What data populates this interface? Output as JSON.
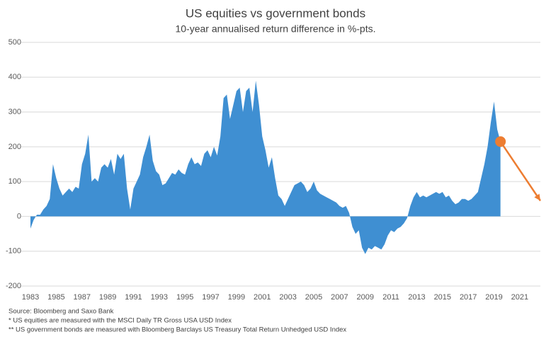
{
  "chart_data": {
    "type": "area",
    "title": "US equities vs government bonds",
    "subtitle": "10-year annualised return difference in %-pts.",
    "color": "#3f8fd2",
    "x": [
      1983,
      1983.25,
      1983.5,
      1983.75,
      1984,
      1984.25,
      1984.5,
      1984.75,
      1985,
      1985.25,
      1985.5,
      1985.75,
      1986,
      1986.25,
      1986.5,
      1986.75,
      1987,
      1987.25,
      1987.5,
      1987.75,
      1988,
      1988.25,
      1988.5,
      1988.75,
      1989,
      1989.25,
      1989.5,
      1989.75,
      1990,
      1990.25,
      1990.5,
      1990.75,
      1991,
      1991.25,
      1991.5,
      1991.75,
      1992,
      1992.25,
      1992.5,
      1992.75,
      1993,
      1993.25,
      1993.5,
      1993.75,
      1994,
      1994.25,
      1994.5,
      1994.75,
      1995,
      1995.25,
      1995.5,
      1995.75,
      1996,
      1996.25,
      1996.5,
      1996.75,
      1997,
      1997.25,
      1997.5,
      1997.75,
      1998,
      1998.25,
      1998.5,
      1998.75,
      1999,
      1999.25,
      1999.5,
      1999.75,
      2000,
      2000.25,
      2000.5,
      2000.75,
      2001,
      2001.25,
      2001.5,
      2001.75,
      2002,
      2002.25,
      2002.5,
      2002.75,
      2003,
      2003.25,
      2003.5,
      2003.75,
      2004,
      2004.25,
      2004.5,
      2004.75,
      2005,
      2005.25,
      2005.5,
      2005.75,
      2006,
      2006.25,
      2006.5,
      2006.75,
      2007,
      2007.25,
      2007.5,
      2007.75,
      2008,
      2008.25,
      2008.5,
      2008.75,
      2009,
      2009.25,
      2009.5,
      2009.75,
      2010,
      2010.25,
      2010.5,
      2010.75,
      2011,
      2011.25,
      2011.5,
      2011.75,
      2012,
      2012.25,
      2012.5,
      2012.75,
      2013,
      2013.25,
      2013.5,
      2013.75,
      2014,
      2014.25,
      2014.5,
      2014.75,
      2015,
      2015.25,
      2015.5,
      2015.75,
      2016,
      2016.25,
      2016.5,
      2016.75,
      2017,
      2017.25,
      2017.5,
      2017.75,
      2018,
      2018.25,
      2018.5,
      2018.75,
      2019,
      2019.25,
      2019.5
    ],
    "values": [
      -35,
      -10,
      5,
      5,
      20,
      30,
      50,
      150,
      110,
      80,
      60,
      70,
      80,
      70,
      85,
      80,
      150,
      180,
      235,
      100,
      110,
      100,
      140,
      150,
      140,
      165,
      120,
      180,
      165,
      180,
      80,
      20,
      80,
      100,
      120,
      170,
      200,
      235,
      160,
      130,
      120,
      90,
      95,
      110,
      125,
      120,
      135,
      125,
      120,
      150,
      170,
      150,
      155,
      145,
      180,
      190,
      170,
      200,
      175,
      230,
      340,
      350,
      280,
      320,
      360,
      370,
      300,
      360,
      370,
      300,
      390,
      320,
      230,
      190,
      140,
      170,
      110,
      60,
      50,
      30,
      50,
      70,
      90,
      95,
      100,
      90,
      70,
      80,
      100,
      75,
      65,
      60,
      55,
      50,
      45,
      40,
      30,
      25,
      30,
      10,
      -30,
      -50,
      -40,
      -90,
      -108,
      -90,
      -95,
      -85,
      -90,
      -95,
      -80,
      -55,
      -40,
      -45,
      -35,
      -30,
      -20,
      -5,
      30,
      55,
      70,
      55,
      60,
      55,
      60,
      65,
      70,
      65,
      70,
      55,
      60,
      45,
      35,
      40,
      50,
      50,
      45,
      50,
      60,
      70,
      110,
      150,
      200,
      270,
      330,
      250,
      215
    ],
    "arrow": {
      "x": [
        2019.5,
        2022.6
      ],
      "y": [
        215,
        45
      ],
      "color": "#ed7d31"
    },
    "xlim": [
      1983,
      2022.6
    ],
    "xticks": [
      1983,
      1985,
      1987,
      1989,
      1991,
      1993,
      1995,
      1997,
      1999,
      2001,
      2003,
      2005,
      2007,
      2009,
      2011,
      2013,
      2015,
      2017,
      2019,
      2021
    ],
    "ylim": [
      -200,
      500
    ],
    "yticks": [
      -200,
      -100,
      0,
      100,
      200,
      300,
      400,
      500
    ],
    "grid": true,
    "notes": [
      "Source: Bloomberg and Saxo Bank",
      "* US equities are measured with the MSCI Daily TR Gross USA USD Index",
      "** US government bonds are measured with Bloomberg Barclays US Treasury Total Return Unhedged USD Index"
    ]
  }
}
